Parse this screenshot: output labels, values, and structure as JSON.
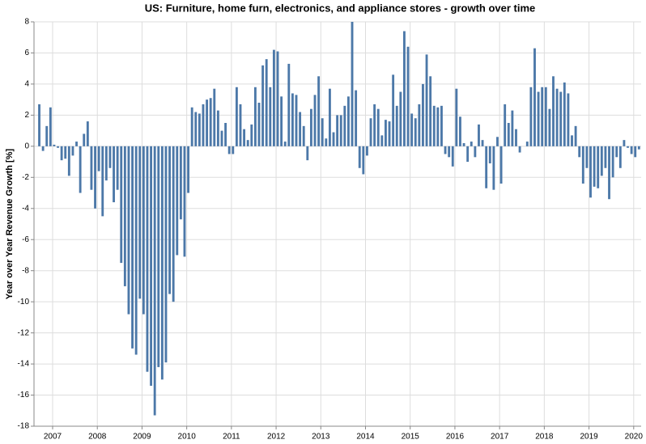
{
  "chart_data": {
    "type": "bar",
    "title": "US: Furniture, home furn, electronics, and appliance stores - growth over time",
    "y_label": "Year over Year Revenue Growth [%]",
    "color": "#4c78a8",
    "grid": true,
    "xlim": [
      "2006-08",
      "2020-03"
    ],
    "xticks": [
      2007,
      2008,
      2009,
      2010,
      2011,
      2012,
      2013,
      2014,
      2015,
      2016,
      2017,
      2018,
      2019,
      2020
    ],
    "ylim": [
      -18,
      8
    ],
    "yticks": [
      -18,
      -16,
      -14,
      -12,
      -10,
      -8,
      -6,
      -4,
      -2,
      0,
      2,
      4,
      6,
      8
    ],
    "x": [
      "2006-09",
      "2006-10",
      "2006-11",
      "2006-12",
      "2007-01",
      "2007-02",
      "2007-03",
      "2007-04",
      "2007-05",
      "2007-06",
      "2007-07",
      "2007-08",
      "2007-09",
      "2007-10",
      "2007-11",
      "2007-12",
      "2008-01",
      "2008-02",
      "2008-03",
      "2008-04",
      "2008-05",
      "2008-06",
      "2008-07",
      "2008-08",
      "2008-09",
      "2008-10",
      "2008-11",
      "2008-12",
      "2009-01",
      "2009-02",
      "2009-03",
      "2009-04",
      "2009-05",
      "2009-06",
      "2009-07",
      "2009-08",
      "2009-09",
      "2009-10",
      "2009-11",
      "2009-12",
      "2010-01",
      "2010-02",
      "2010-03",
      "2010-04",
      "2010-05",
      "2010-06",
      "2010-07",
      "2010-08",
      "2010-09",
      "2010-10",
      "2010-11",
      "2010-12",
      "2011-01",
      "2011-02",
      "2011-03",
      "2011-04",
      "2011-05",
      "2011-06",
      "2011-07",
      "2011-08",
      "2011-09",
      "2011-10",
      "2011-11",
      "2011-12",
      "2012-01",
      "2012-02",
      "2012-03",
      "2012-04",
      "2012-05",
      "2012-06",
      "2012-07",
      "2012-08",
      "2012-09",
      "2012-10",
      "2012-11",
      "2012-12",
      "2013-01",
      "2013-02",
      "2013-03",
      "2013-04",
      "2013-05",
      "2013-06",
      "2013-07",
      "2013-08",
      "2013-09",
      "2013-10",
      "2013-11",
      "2013-12",
      "2014-01",
      "2014-02",
      "2014-03",
      "2014-04",
      "2014-05",
      "2014-06",
      "2014-07",
      "2014-08",
      "2014-09",
      "2014-10",
      "2014-11",
      "2014-12",
      "2015-01",
      "2015-02",
      "2015-03",
      "2015-04",
      "2015-05",
      "2015-06",
      "2015-07",
      "2015-08",
      "2015-09",
      "2015-10",
      "2015-11",
      "2015-12",
      "2016-01",
      "2016-02",
      "2016-03",
      "2016-04",
      "2016-05",
      "2016-06",
      "2016-07",
      "2016-08",
      "2016-09",
      "2016-10",
      "2016-11",
      "2016-12",
      "2017-01",
      "2017-02",
      "2017-03",
      "2017-04",
      "2017-05",
      "2017-06",
      "2017-07",
      "2017-08",
      "2017-09",
      "2017-10",
      "2017-11",
      "2017-12",
      "2018-01",
      "2018-02",
      "2018-03",
      "2018-04",
      "2018-05",
      "2018-06",
      "2018-07",
      "2018-08",
      "2018-09",
      "2018-10",
      "2018-11",
      "2018-12",
      "2019-01",
      "2019-02",
      "2019-03",
      "2019-04",
      "2019-05",
      "2019-06",
      "2019-07",
      "2019-08",
      "2019-09",
      "2019-10",
      "2019-11",
      "2019-12",
      "2020-01",
      "2020-02"
    ],
    "values": [
      2.7,
      -0.3,
      1.3,
      2.5,
      0.1,
      -0.1,
      -0.9,
      -0.8,
      -1.9,
      -0.6,
      0.3,
      -3.0,
      0.8,
      1.6,
      -2.8,
      -4.0,
      -1.6,
      -4.5,
      -2.2,
      -1.4,
      -3.6,
      -2.8,
      -7.5,
      -9.0,
      -10.8,
      -13.0,
      -13.4,
      -9.8,
      -10.8,
      -14.5,
      -15.4,
      -17.3,
      -14.2,
      -15.0,
      -13.9,
      -9.5,
      -10.0,
      -7.0,
      -4.7,
      -7.1,
      -3.0,
      2.5,
      2.2,
      2.1,
      2.7,
      3.0,
      3.1,
      3.7,
      2.3,
      1.0,
      1.5,
      -0.5,
      -0.5,
      3.8,
      2.7,
      1.1,
      0.4,
      1.4,
      3.8,
      2.8,
      5.2,
      5.6,
      3.8,
      6.2,
      6.1,
      3.2,
      0.3,
      5.3,
      3.4,
      3.3,
      2.2,
      1.3,
      -0.9,
      2.4,
      3.3,
      4.5,
      1.8,
      0.5,
      3.7,
      0.9,
      2.0,
      2.0,
      2.6,
      3.2,
      8.0,
      3.6,
      -1.4,
      -1.8,
      -0.6,
      1.8,
      2.7,
      2.4,
      0.7,
      1.7,
      1.6,
      4.6,
      2.6,
      3.5,
      7.4,
      6.4,
      2.1,
      1.8,
      2.7,
      4.0,
      5.9,
      4.5,
      2.6,
      2.5,
      2.6,
      -0.5,
      -0.7,
      -1.3,
      3.7,
      1.9,
      0.2,
      -1.0,
      0.3,
      -0.7,
      1.4,
      0.4,
      -2.7,
      -1.1,
      -2.8,
      0.6,
      -2.4,
      2.7,
      1.5,
      2.3,
      1.1,
      -0.4,
      0.0,
      0.3,
      3.8,
      6.3,
      3.5,
      3.8,
      3.8,
      2.4,
      4.5,
      3.7,
      3.5,
      4.1,
      3.4,
      0.7,
      1.3,
      -0.7,
      -2.4,
      -1.4,
      -3.3,
      -2.6,
      -2.7,
      -1.9,
      -1.4,
      -3.4,
      -2.0,
      -0.7,
      -1.4,
      0.4,
      -0.1,
      -0.5,
      -0.7,
      -0.2
    ]
  }
}
